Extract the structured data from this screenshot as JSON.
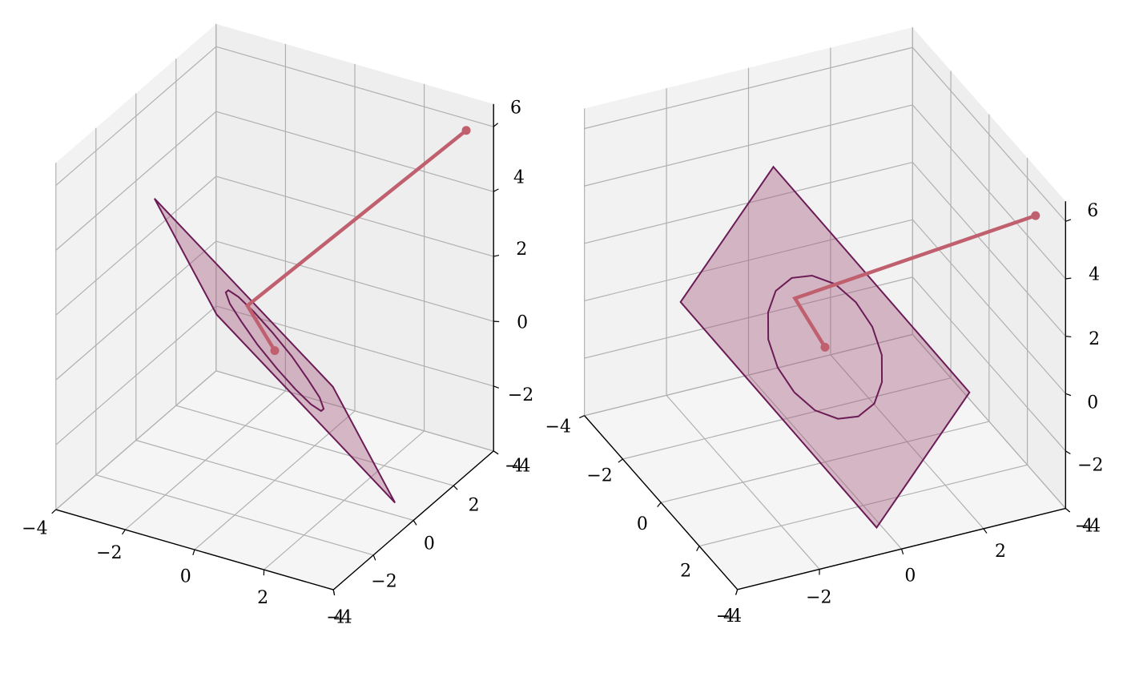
{
  "chart_data": [
    {
      "type": "surface3d",
      "xlim": [
        -4,
        4
      ],
      "ylim": [
        -4,
        4
      ],
      "zlim": [
        -4,
        6.7
      ],
      "xticks": [
        {
          "value": -4,
          "label": "−4"
        },
        {
          "value": -2,
          "label": "−2"
        },
        0,
        2,
        4
      ],
      "yticks": [
        {
          "value": -4,
          "label": "−4"
        },
        {
          "value": -2,
          "label": "−2"
        },
        0,
        2,
        4
      ],
      "zticks": [
        {
          "value": -4,
          "label": "−4"
        },
        {
          "value": -2,
          "label": "−2"
        },
        0,
        2,
        4,
        6
      ],
      "grid": true,
      "plane": {
        "color": "#a5577e",
        "edge_color": "#6b1b55",
        "x": [
          3.75,
          -0.49,
          -3.75,
          0.49
        ],
        "y": [
          -0.49,
          3.75,
          0.49,
          -3.75
        ],
        "z": [
          -3.27,
          -3.27,
          3.27,
          3.27
        ]
      },
      "circle": {
        "color": "#6b1b55",
        "x": [
          1.41,
          1.62,
          1.58,
          1.29,
          0.82,
          0.21,
          -0.42,
          -1.0,
          -1.41,
          -1.62,
          -1.58,
          -1.29,
          -0.82,
          -0.21,
          0.42,
          1.0,
          1.41
        ],
        "y": [
          -1.41,
          -1.0,
          -0.42,
          0.21,
          0.82,
          1.29,
          1.58,
          1.62,
          1.41,
          1.0,
          0.42,
          -0.21,
          -0.82,
          -1.29,
          -1.58,
          -1.62,
          -1.41
        ],
        "z": [
          0,
          -0.62,
          -1.15,
          -1.51,
          -1.63,
          -1.51,
          -1.15,
          -0.62,
          0,
          0.62,
          1.15,
          1.51,
          1.63,
          1.51,
          1.15,
          0.62,
          0
        ]
      },
      "vector": {
        "color": "#c0606f",
        "x": [
          0,
          -0.5,
          3.5
        ],
        "y": [
          0,
          -0.5,
          3.5
        ],
        "z": [
          0,
          1.5,
          6
        ]
      }
    },
    {
      "type": "surface3d",
      "xlim": [
        -4,
        4
      ],
      "ylim": [
        -4,
        4
      ],
      "zlim": [
        -4,
        6.7
      ],
      "xticks": [
        {
          "value": -4,
          "label": "−4"
        },
        {
          "value": -2,
          "label": "−2"
        },
        0,
        2,
        4
      ],
      "yticks": [
        {
          "value": -4,
          "label": "−4"
        },
        {
          "value": -2,
          "label": "−2"
        },
        0,
        2,
        4
      ],
      "zticks": [
        {
          "value": -4,
          "label": "−4"
        },
        {
          "value": -2,
          "label": "−2"
        },
        0,
        2,
        4,
        6
      ],
      "grid": true,
      "plane": {
        "color": "#a5577e",
        "edge_color": "#6b1b55",
        "x": [
          3.75,
          -0.49,
          -3.75,
          0.49
        ],
        "y": [
          -0.49,
          3.75,
          0.49,
          -3.75
        ],
        "z": [
          -3.27,
          -3.27,
          3.27,
          3.27
        ]
      },
      "circle": {
        "color": "#6b1b55",
        "x": [
          1.41,
          1.62,
          1.58,
          1.29,
          0.82,
          0.21,
          -0.42,
          -1.0,
          -1.41,
          -1.62,
          -1.58,
          -1.29,
          -0.82,
          -0.21,
          0.42,
          1.0,
          1.41
        ],
        "y": [
          -1.41,
          -1.0,
          -0.42,
          0.21,
          0.82,
          1.29,
          1.58,
          1.62,
          1.41,
          1.0,
          0.42,
          -0.21,
          -0.82,
          -1.29,
          -1.58,
          -1.62,
          -1.41
        ],
        "z": [
          0,
          -0.62,
          -1.15,
          -1.51,
          -1.63,
          -1.51,
          -1.15,
          -0.62,
          0,
          0.62,
          1.15,
          1.51,
          1.63,
          1.51,
          1.15,
          0.62,
          0
        ]
      },
      "vector": {
        "color": "#c0606f",
        "x": [
          0,
          -0.5,
          3.5
        ],
        "y": [
          0,
          -0.5,
          3.5
        ],
        "z": [
          0,
          1.5,
          6
        ]
      }
    }
  ]
}
